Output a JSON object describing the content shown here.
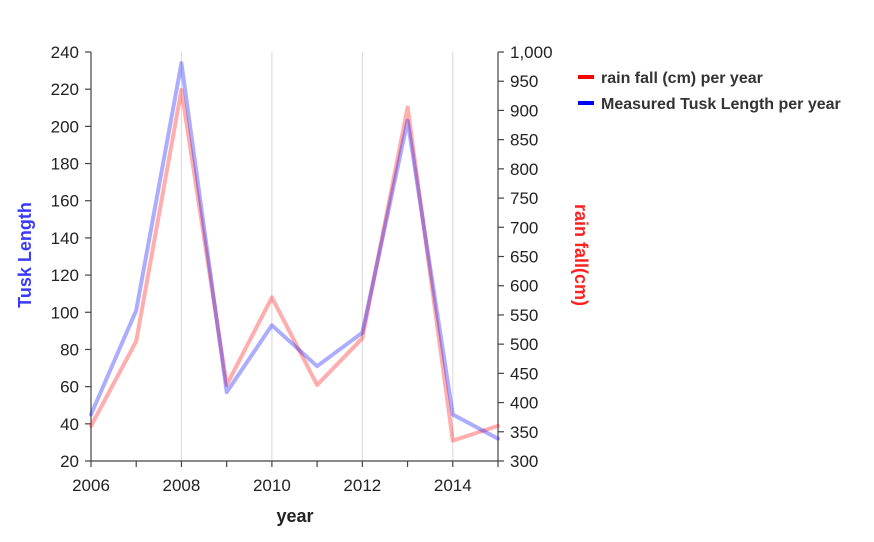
{
  "chart_data": {
    "type": "line",
    "x_label": "year",
    "left_axis_label": "Tusk Length",
    "right_axis_label": "rain fall(cm)",
    "x_range": [
      2006,
      2015
    ],
    "x_ticks": [
      "2006",
      "2008",
      "2010",
      "2012",
      "2014"
    ],
    "left_range": [
      20,
      240
    ],
    "left_ticks": [
      "20",
      "40",
      "60",
      "80",
      "100",
      "120",
      "140",
      "160",
      "180",
      "200",
      "220",
      "240"
    ],
    "right_range": [
      300,
      1000
    ],
    "right_ticks": [
      "300",
      "350",
      "400",
      "450",
      "500",
      "550",
      "600",
      "650",
      "700",
      "750",
      "800",
      "850",
      "900",
      "950",
      "1,000"
    ],
    "grid": "vertical",
    "legend_position": "top-right",
    "x": [
      2006,
      2007,
      2008,
      2009,
      2010,
      2011,
      2012,
      2013,
      2014,
      2015
    ],
    "series": [
      {
        "name": "rain fall (cm) per year",
        "axis": "right",
        "color": "#ff0000",
        "values": [
          360,
          505,
          935,
          430,
          580,
          430,
          510,
          905,
          335,
          360
        ]
      },
      {
        "name": "Measured Tusk Length per year",
        "axis": "left",
        "color": "#0000ff",
        "values": [
          45,
          101,
          234,
          57,
          93,
          71,
          89,
          203,
          45,
          32
        ]
      }
    ]
  }
}
